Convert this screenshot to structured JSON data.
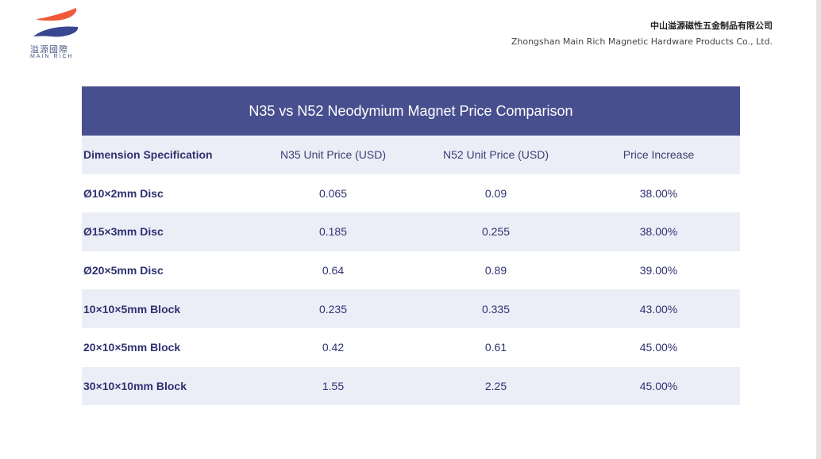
{
  "logo": {
    "cn": "溢源國際",
    "en": "MAIN RICH"
  },
  "company": {
    "cn": "中山溢源磁性五金制品有限公司",
    "en": "Zhongshan Main Rich Magnetic Hardware Products Co., Ltd."
  },
  "table": {
    "title": "N35 vs N52 Neodymium Magnet Price Comparison",
    "headers": [
      "Dimension Specification",
      "N35 Unit Price (USD)",
      "N52 Unit Price (USD)",
      "Price Increase"
    ],
    "rows": [
      [
        "Ø10×2mm Disc",
        "0.065",
        "0.09",
        "38.00%"
      ],
      [
        "Ø15×3mm Disc",
        "0.185",
        "0.255",
        "38.00%"
      ],
      [
        "Ø20×5mm Disc",
        "0.64",
        "0.89",
        "39.00%"
      ],
      [
        "10×10×5mm Block",
        "0.235",
        "0.335",
        "43.00%"
      ],
      [
        "20×10×5mm Block",
        "0.42",
        "0.61",
        "45.00%"
      ],
      [
        "30×10×10mm Block",
        "1.55",
        "2.25",
        "45.00%"
      ]
    ]
  },
  "colors": {
    "title_bg": "#484f8e",
    "text": "#2e3170",
    "alt_row": "#eceef7",
    "logo_orange": "#ef5a3a",
    "logo_blue": "#3a4690"
  }
}
